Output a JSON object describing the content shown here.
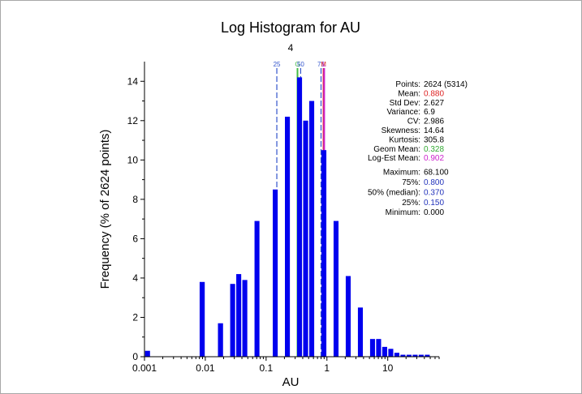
{
  "chart_data": {
    "type": "bar",
    "title": "Log Histogram for AU",
    "subtitle": "4",
    "xlabel": "AU",
    "ylabel": "Frequency (% of 2624 points)",
    "xscale": "log",
    "xlim": [
      0.001,
      70
    ],
    "ylim": [
      0,
      15
    ],
    "xticks": [
      {
        "value": 0.001,
        "label": "0.001"
      },
      {
        "value": 0.01,
        "label": "0.01"
      },
      {
        "value": 0.1,
        "label": "0.1"
      },
      {
        "value": 1,
        "label": "1"
      },
      {
        "value": 10,
        "label": "10"
      }
    ],
    "yticks": [
      0,
      2,
      4,
      6,
      8,
      10,
      12,
      14
    ],
    "bar_color": "#0000ee",
    "bins": [
      {
        "lo": 0.001,
        "hi": 0.00126,
        "value": 0.3
      },
      {
        "lo": 0.0079,
        "hi": 0.01,
        "value": 3.8
      },
      {
        "lo": 0.0158,
        "hi": 0.02,
        "value": 1.7
      },
      {
        "lo": 0.0251,
        "hi": 0.0316,
        "value": 3.7
      },
      {
        "lo": 0.0316,
        "hi": 0.0398,
        "value": 4.2
      },
      {
        "lo": 0.0398,
        "hi": 0.0501,
        "value": 3.9
      },
      {
        "lo": 0.0631,
        "hi": 0.0794,
        "value": 6.9
      },
      {
        "lo": 0.1259,
        "hi": 0.1585,
        "value": 8.5
      },
      {
        "lo": 0.1995,
        "hi": 0.2512,
        "value": 12.2
      },
      {
        "lo": 0.3162,
        "hi": 0.3981,
        "value": 14.2
      },
      {
        "lo": 0.3981,
        "hi": 0.5012,
        "value": 12.0
      },
      {
        "lo": 0.5012,
        "hi": 0.631,
        "value": 13.0
      },
      {
        "lo": 0.7943,
        "hi": 1.0,
        "value": 10.5
      },
      {
        "lo": 1.2589,
        "hi": 1.5849,
        "value": 6.9
      },
      {
        "lo": 1.9953,
        "hi": 2.5119,
        "value": 4.1
      },
      {
        "lo": 3.1623,
        "hi": 3.9811,
        "value": 2.5
      },
      {
        "lo": 5.0119,
        "hi": 6.3096,
        "value": 0.9
      },
      {
        "lo": 6.3096,
        "hi": 7.9433,
        "value": 0.9
      },
      {
        "lo": 7.9433,
        "hi": 10.0,
        "value": 0.5
      },
      {
        "lo": 10.0,
        "hi": 12.5893,
        "value": 0.4
      },
      {
        "lo": 12.5893,
        "hi": 15.8489,
        "value": 0.2
      },
      {
        "lo": 15.8489,
        "hi": 19.9526,
        "value": 0.1
      },
      {
        "lo": 19.9526,
        "hi": 25.1189,
        "value": 0.1
      },
      {
        "lo": 25.1189,
        "hi": 31.6228,
        "value": 0.1
      },
      {
        "lo": 31.6228,
        "hi": 39.8107,
        "value": 0.1
      },
      {
        "lo": 39.8107,
        "hi": 50.1187,
        "value": 0.1
      }
    ],
    "reference_lines": [
      {
        "label": "25",
        "value": 0.15,
        "color": "#3355cc",
        "style": "dashed"
      },
      {
        "label": "G",
        "value": 0.328,
        "color": "#44bb44",
        "style": "solid"
      },
      {
        "label": "50",
        "value": 0.37,
        "color": "#3355cc",
        "style": "dashed"
      },
      {
        "label": "75",
        "value": 0.8,
        "color": "#3355cc",
        "style": "dashed"
      },
      {
        "label": "M",
        "value": 0.88,
        "color": "#dd2222",
        "style": "solid"
      },
      {
        "label": "L",
        "value": 0.902,
        "color": "#cc22cc",
        "style": "solid"
      }
    ],
    "stats": [
      {
        "label": "Points:",
        "value": "2624 (5314)",
        "color": "#000000"
      },
      {
        "label": "Mean:",
        "value": "0.880",
        "color": "#dd2222"
      },
      {
        "label": "Std Dev:",
        "value": "2.627",
        "color": "#000000"
      },
      {
        "label": "Variance:",
        "value": "6.9",
        "color": "#000000"
      },
      {
        "label": "CV:",
        "value": "2.986",
        "color": "#000000"
      },
      {
        "label": "Skewness:",
        "value": "14.64",
        "color": "#000000"
      },
      {
        "label": "Kurtosis:",
        "value": "305.8",
        "color": "#000000"
      },
      {
        "label": "Geom Mean:",
        "value": "0.328",
        "color": "#33aa33"
      },
      {
        "label": "Log-Est Mean:",
        "value": "0.902",
        "color": "#cc22cc"
      }
    ],
    "quantiles": [
      {
        "label": "Maximum:",
        "value": "68.100",
        "color": "#000000"
      },
      {
        "label": "75%:",
        "value": "0.800",
        "color": "#2233bb"
      },
      {
        "label": "50% (median):",
        "value": "0.370",
        "color": "#2233bb"
      },
      {
        "label": "25%:",
        "value": "0.150",
        "color": "#2233bb"
      },
      {
        "label": "Minimum:",
        "value": "0.000",
        "color": "#000000"
      }
    ]
  }
}
